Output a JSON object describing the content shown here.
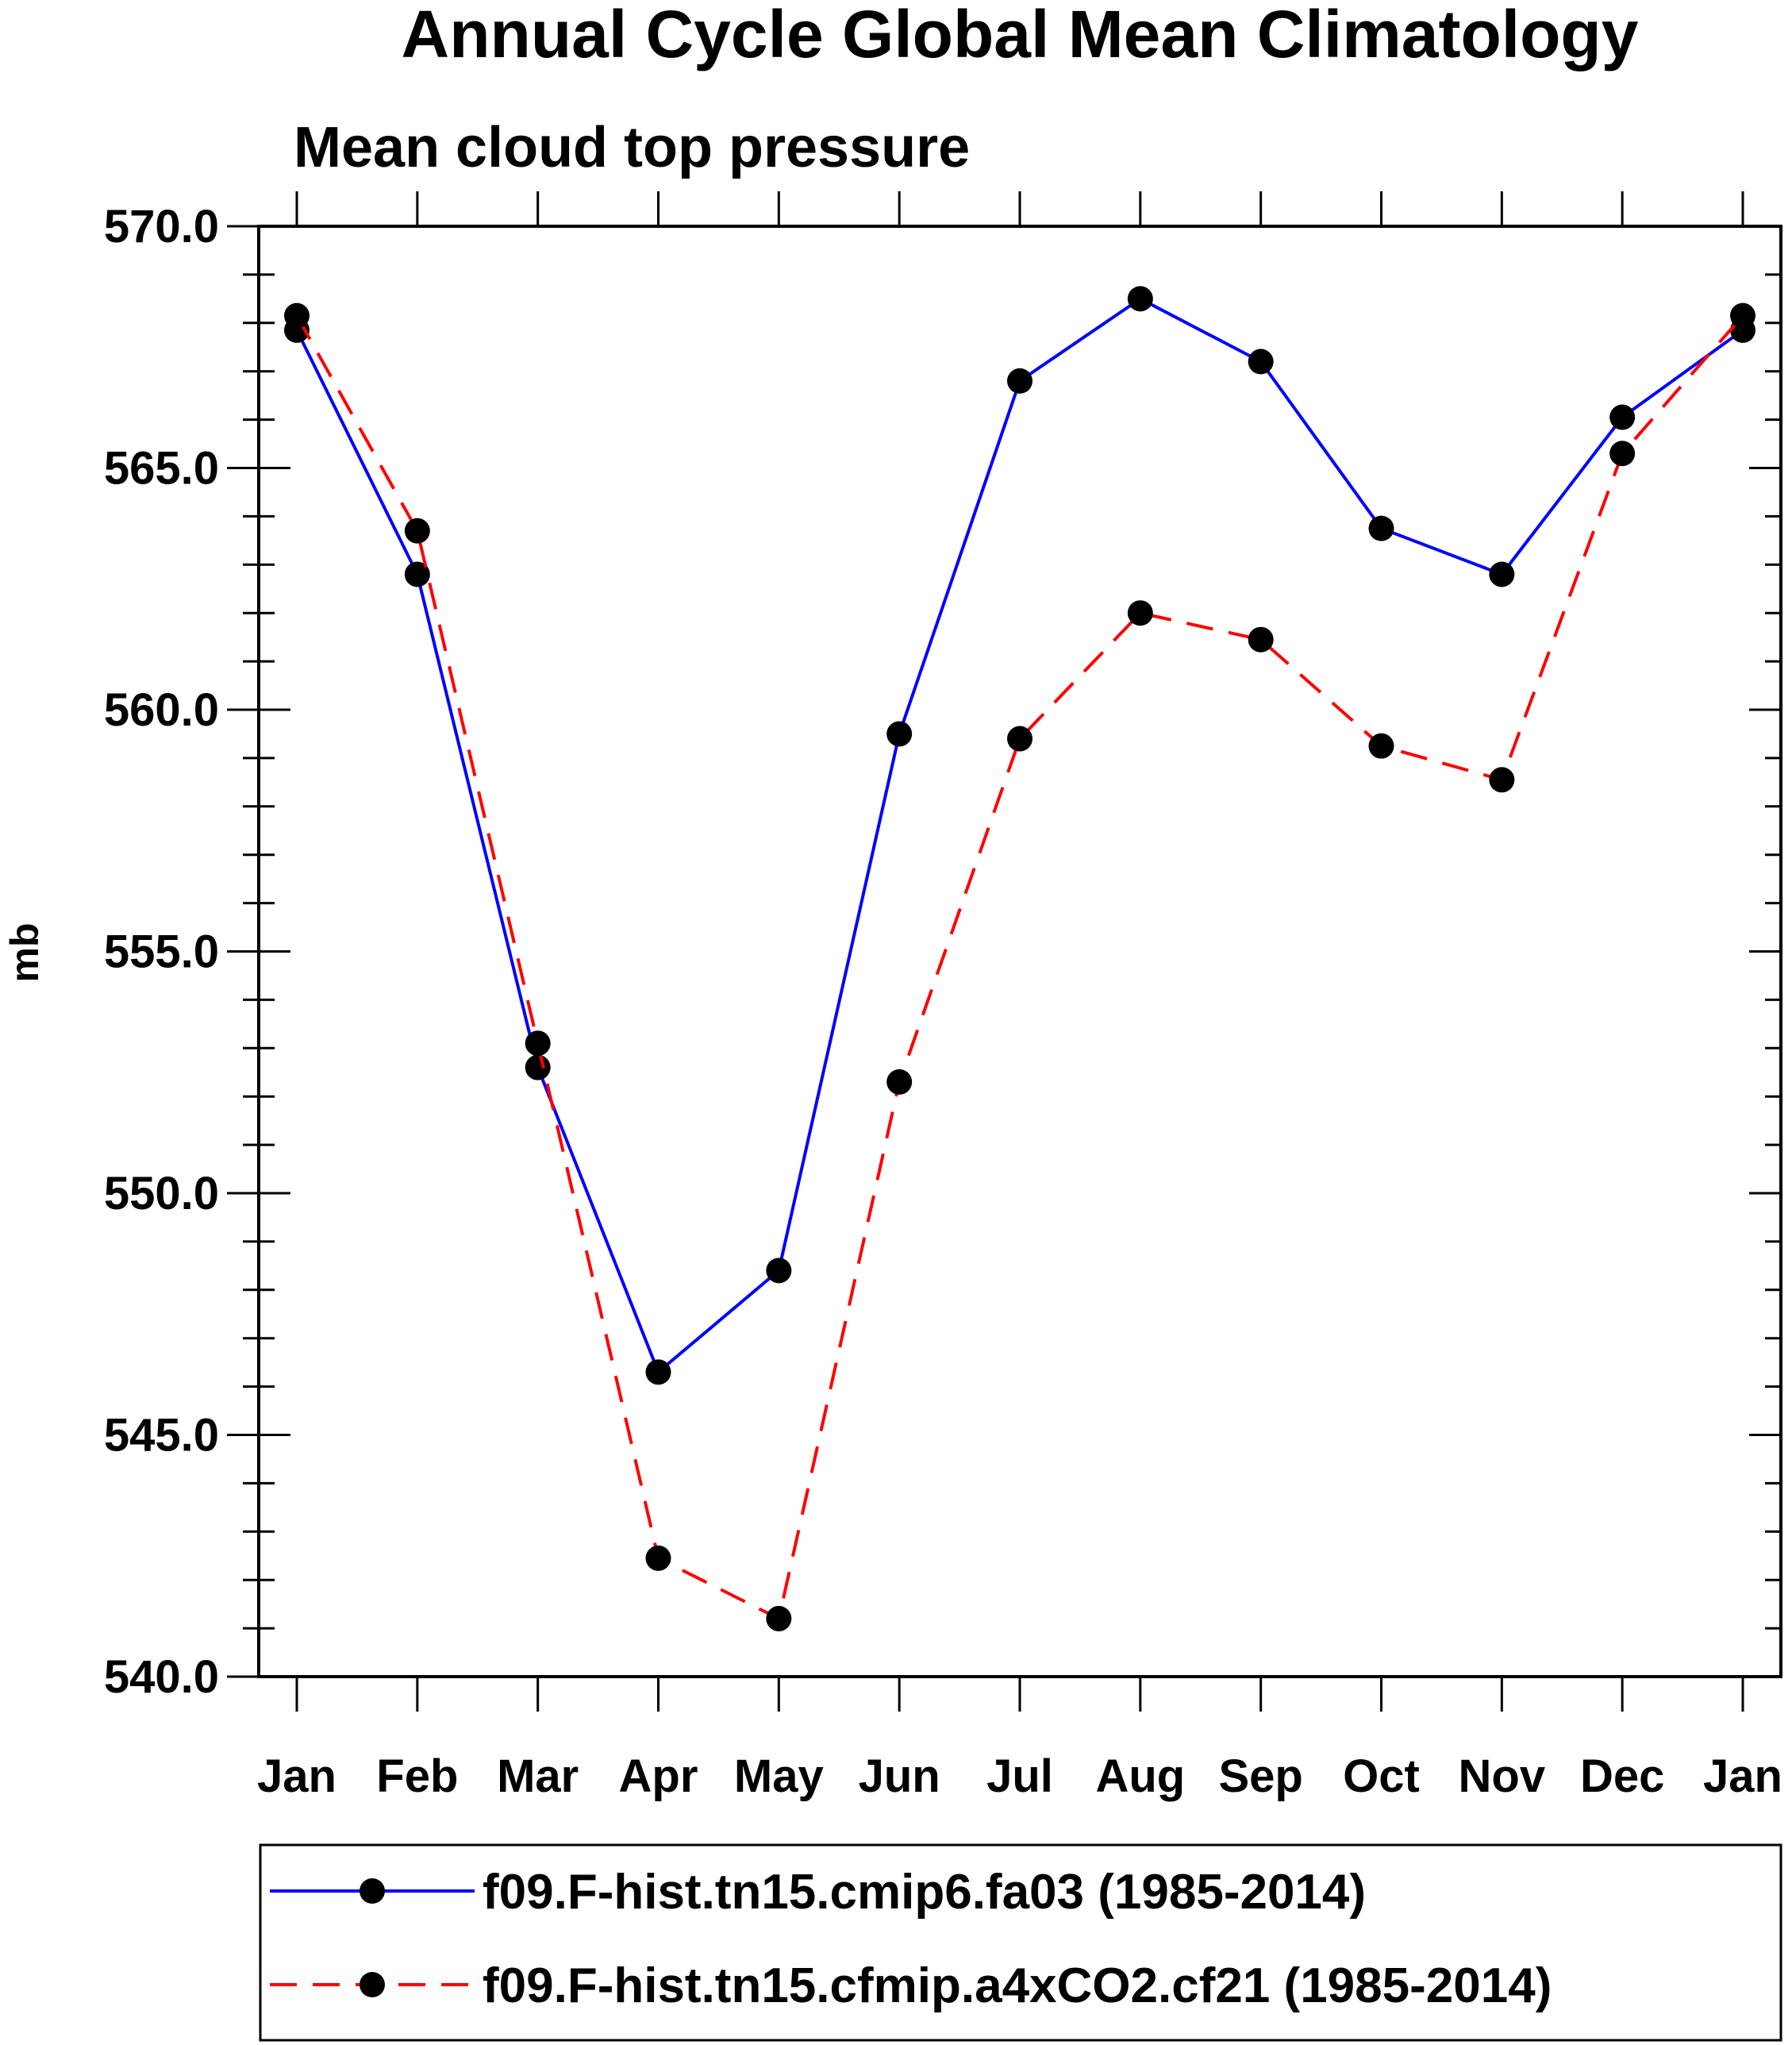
{
  "chart_data": {
    "type": "line",
    "title": "Annual Cycle Global Mean Climatology",
    "subtitle": "Mean cloud top pressure",
    "xlabel": "",
    "ylabel": "mb",
    "categories": [
      "Jan",
      "Feb",
      "Mar",
      "Apr",
      "May",
      "Jun",
      "Jul",
      "Aug",
      "Sep",
      "Oct",
      "Nov",
      "Dec",
      "Jan"
    ],
    "ylim": [
      540,
      570
    ],
    "yticks": [
      "540.0",
      "545.0",
      "550.0",
      "555.0",
      "560.0",
      "565.0",
      "570.0"
    ],
    "ytick_values": [
      540,
      545,
      550,
      555,
      560,
      565,
      570
    ],
    "legend_position": "bottom",
    "series": [
      {
        "name": "f09.F-hist.tn15.cmip6.fa03 (1985-2014)",
        "color": "#0000ff",
        "dash": "solid",
        "values": [
          567.85,
          562.8,
          552.6,
          546.3,
          548.4,
          559.5,
          566.8,
          568.5,
          567.2,
          563.75,
          562.8,
          566.05,
          567.85
        ]
      },
      {
        "name": "f09.F-hist.tn15.cfmip.a4xCO2.cf21 (1985-2014)",
        "color": "#ff0000",
        "dash": "dashed",
        "values": [
          568.15,
          563.7,
          553.1,
          542.45,
          541.2,
          552.3,
          559.4,
          562.0,
          561.45,
          559.25,
          558.55,
          565.3,
          568.15
        ]
      }
    ]
  }
}
